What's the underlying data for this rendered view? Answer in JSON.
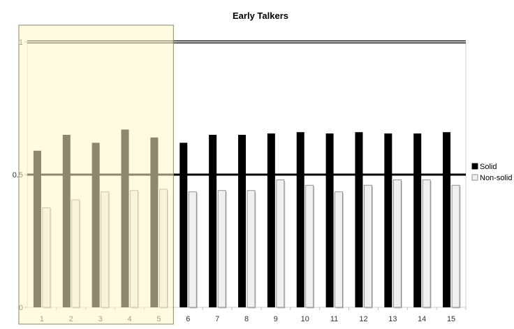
{
  "chart_data": {
    "type": "bar",
    "title": "Early Talkers",
    "xlabel": "",
    "ylabel": "",
    "ylim": [
      0,
      1
    ],
    "y_ticks": [
      "0",
      "0.5",
      "1"
    ],
    "categories": [
      "1",
      "2",
      "3",
      "4",
      "5",
      "6",
      "7",
      "8",
      "9",
      "10",
      "11",
      "12",
      "13",
      "14",
      "15"
    ],
    "series": [
      {
        "name": "Solid",
        "color": "#000000",
        "values": [
          0.59,
          0.65,
          0.62,
          0.67,
          0.64,
          0.62,
          0.65,
          0.65,
          0.655,
          0.66,
          0.655,
          0.66,
          0.655,
          0.655,
          0.66
        ]
      },
      {
        "name": "Non-solid",
        "color": "#f0f0f0",
        "values": [
          0.375,
          0.405,
          0.435,
          0.44,
          0.445,
          0.435,
          0.44,
          0.44,
          0.48,
          0.46,
          0.435,
          0.46,
          0.48,
          0.48,
          0.46
        ]
      }
    ],
    "reference_lines": [
      0.5,
      1
    ],
    "highlight": {
      "categories": [
        "1",
        "2",
        "3",
        "4",
        "5"
      ],
      "color": "#fdf7c3"
    },
    "grid": false,
    "legend_position": "right"
  }
}
